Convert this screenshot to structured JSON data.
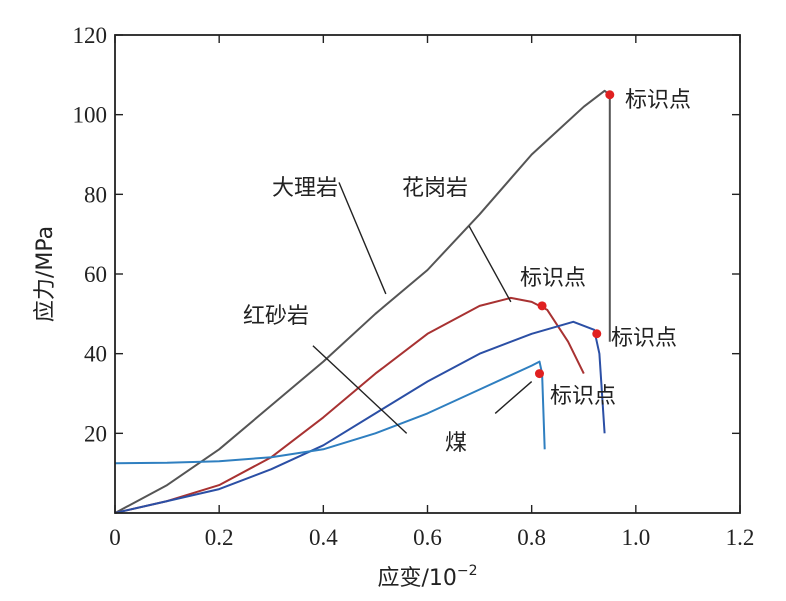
{
  "chart_data": {
    "type": "line",
    "title": "",
    "xlabel": "应变/10",
    "xlabel_exponent": "−2",
    "ylabel": "应力/MPa",
    "xlim": [
      0,
      1.2
    ],
    "ylim": [
      0,
      120
    ],
    "x_ticks": [
      0,
      0.2,
      0.4,
      0.6,
      0.8,
      1.0,
      1.2
    ],
    "x_tick_labels": [
      "0",
      "0.2",
      "0.4",
      "0.6",
      "0.8",
      "1.0",
      "1.2"
    ],
    "y_ticks": [
      20,
      40,
      60,
      80,
      100,
      120
    ],
    "y_tick_labels": [
      "20",
      "40",
      "60",
      "80",
      "100",
      "120"
    ],
    "grid": false,
    "series": [
      {
        "name": "大理岩",
        "color": "#555555",
        "x": [
          0,
          0.1,
          0.2,
          0.3,
          0.4,
          0.5,
          0.6,
          0.7,
          0.8,
          0.9,
          0.94,
          0.95,
          0.95
        ],
        "y": [
          0,
          7,
          16,
          27,
          38,
          50,
          61,
          75,
          90,
          102,
          106,
          105,
          43
        ]
      },
      {
        "name": "花岗岩",
        "color": "#a83232",
        "x": [
          0,
          0.1,
          0.2,
          0.3,
          0.4,
          0.5,
          0.6,
          0.7,
          0.76,
          0.8,
          0.83,
          0.87,
          0.9
        ],
        "y": [
          0,
          3,
          7,
          14,
          24,
          35,
          45,
          52,
          54,
          53,
          51,
          43,
          35
        ]
      },
      {
        "name": "红砂岩",
        "color": "#2b4fa5",
        "x": [
          0,
          0.1,
          0.2,
          0.3,
          0.4,
          0.5,
          0.6,
          0.7,
          0.8,
          0.88,
          0.92,
          0.93,
          0.94
        ],
        "y": [
          0,
          3,
          6,
          11,
          17,
          25,
          33,
          40,
          45,
          48,
          46,
          40,
          20
        ]
      },
      {
        "name": "煤",
        "color": "#2f7fc0",
        "x": [
          0,
          0.1,
          0.2,
          0.3,
          0.4,
          0.5,
          0.6,
          0.7,
          0.8,
          0.815,
          0.82,
          0.825
        ],
        "y": [
          12.5,
          12.6,
          13,
          14,
          16,
          20,
          25,
          31,
          37,
          38,
          35,
          16
        ]
      }
    ],
    "markers": [
      {
        "x": 0.95,
        "y": 105
      },
      {
        "x": 0.82,
        "y": 52
      },
      {
        "x": 0.925,
        "y": 45
      },
      {
        "x": 0.815,
        "y": 35
      }
    ],
    "annotations": [
      {
        "text": "大理岩",
        "line_from": [
          0.43,
          83
        ],
        "line_to": [
          0.52,
          55
        ]
      },
      {
        "text": "花岗岩",
        "line_from": [
          0.68,
          72
        ],
        "line_to": [
          0.76,
          53
        ]
      },
      {
        "text": "红砂岩",
        "line_from": [
          0.38,
          42
        ],
        "line_to": [
          0.56,
          20
        ]
      },
      {
        "text": "煤",
        "line_from": [
          0.73,
          25
        ],
        "line_to": [
          0.8,
          33
        ]
      },
      {
        "text": "标识点",
        "line_from": [
          0.94,
          105
        ],
        "line_to": [
          0.94,
          105
        ]
      },
      {
        "text": "标识点",
        "line_from": [
          0.82,
          53
        ],
        "line_to": [
          0.82,
          53
        ]
      },
      {
        "text": "标识点",
        "line_from": [
          0.95,
          44
        ],
        "line_to": [
          0.95,
          44
        ]
      },
      {
        "text": "标识点",
        "line_from": [
          0.85,
          30
        ],
        "line_to": [
          0.85,
          30
        ]
      }
    ]
  },
  "colors": {
    "axis": "#222222",
    "marker": "#e02020",
    "leader": "#222222"
  }
}
